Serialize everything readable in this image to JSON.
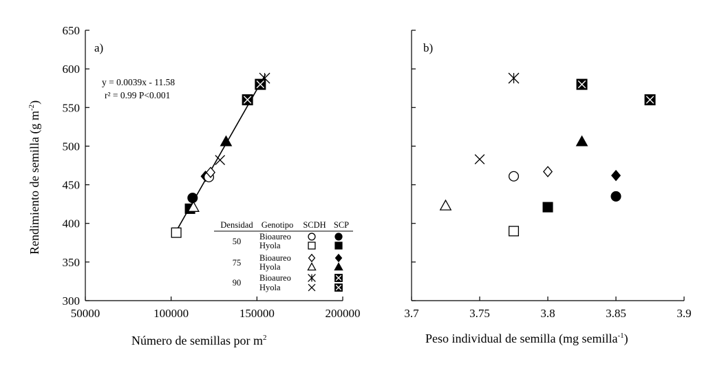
{
  "chart_data": [
    {
      "type": "scatter",
      "panel_label": "a)",
      "xlabel": "Número de semillas por m",
      "xlabel_sup": "2",
      "ylabel_main": "Rendimiento de semilla (g m",
      "ylabel_sup": "-2",
      "ylabel_end": ")",
      "xlim": [
        50000,
        200000
      ],
      "ylim": [
        300,
        650
      ],
      "x_ticks": [
        50000,
        100000,
        150000,
        200000
      ],
      "y_ticks": [
        300,
        350,
        400,
        450,
        500,
        550,
        600,
        650
      ],
      "grid": false,
      "equation": "y = 0.0039x - 11.58",
      "r2_label": "r² = 0.99  P<0.001",
      "regression": {
        "slope": 0.0039,
        "intercept": -11.58,
        "x_range": [
          102000,
          155000
        ]
      },
      "points": [
        {
          "x": 103000,
          "y": 388,
          "marker": "square-open"
        },
        {
          "x": 111000,
          "y": 419,
          "marker": "square-filled"
        },
        {
          "x": 112500,
          "y": 433,
          "marker": "circle-filled"
        },
        {
          "x": 113000,
          "y": 421,
          "marker": "triangle-open"
        },
        {
          "x": 120000,
          "y": 461,
          "marker": "diamond-filled"
        },
        {
          "x": 122000,
          "y": 460,
          "marker": "circle-open"
        },
        {
          "x": 123000,
          "y": 466,
          "marker": "diamond-open"
        },
        {
          "x": 128500,
          "y": 482,
          "marker": "x"
        },
        {
          "x": 132000,
          "y": 506,
          "marker": "triangle-filled"
        },
        {
          "x": 144500,
          "y": 560,
          "marker": "boxx"
        },
        {
          "x": 152000,
          "y": 580,
          "marker": "boxx"
        },
        {
          "x": 154500,
          "y": 588,
          "marker": "asterisk"
        }
      ],
      "legend": {
        "placement": "bottom-right",
        "headers": [
          "Densidad",
          "Genotipo",
          "SCDH",
          "SCP"
        ],
        "rows": [
          {
            "density": "50",
            "genotype": "Bioaureo",
            "scdh": "circle-open",
            "scp": "circle-filled"
          },
          {
            "density": "",
            "genotype": "Hyola",
            "scdh": "square-open",
            "scp": "square-filled"
          },
          {
            "density": "75",
            "genotype": "Bioaureo",
            "scdh": "diamond-open",
            "scp": "diamond-filled"
          },
          {
            "density": "",
            "genotype": "Hyola",
            "scdh": "triangle-open",
            "scp": "triangle-filled"
          },
          {
            "density": "90",
            "genotype": "Bioaureo",
            "scdh": "asterisk",
            "scp": "boxx"
          },
          {
            "density": "",
            "genotype": "Hyola",
            "scdh": "x",
            "scp": "boxx"
          }
        ]
      }
    },
    {
      "type": "scatter",
      "panel_label": "b)",
      "xlabel_main": "Peso individual de semilla (mg semilla",
      "xlabel_sup": "-1",
      "xlabel_end": ")",
      "xlim": [
        3.7,
        3.9
      ],
      "ylim": [
        300,
        650
      ],
      "x_ticks": [
        "3.7",
        "3.75",
        "3.8",
        "3.85",
        "3.9"
      ],
      "y_ticks": [
        300,
        350,
        400,
        450,
        500,
        550,
        600,
        650
      ],
      "y_tick_labels_shown": false,
      "grid": false,
      "points": [
        {
          "x": 3.775,
          "y": 461,
          "marker": "circle-open"
        },
        {
          "x": 3.85,
          "y": 435,
          "marker": "circle-filled"
        },
        {
          "x": 3.775,
          "y": 390,
          "marker": "square-open"
        },
        {
          "x": 3.8,
          "y": 421,
          "marker": "square-filled"
        },
        {
          "x": 3.8,
          "y": 467,
          "marker": "diamond-open"
        },
        {
          "x": 3.85,
          "y": 462,
          "marker": "diamond-filled"
        },
        {
          "x": 3.725,
          "y": 423,
          "marker": "triangle-open"
        },
        {
          "x": 3.825,
          "y": 506,
          "marker": "triangle-filled"
        },
        {
          "x": 3.775,
          "y": 588,
          "marker": "asterisk"
        },
        {
          "x": 3.825,
          "y": 580,
          "marker": "boxx"
        },
        {
          "x": 3.75,
          "y": 483,
          "marker": "x"
        },
        {
          "x": 3.875,
          "y": 560,
          "marker": "boxx"
        }
      ]
    }
  ]
}
